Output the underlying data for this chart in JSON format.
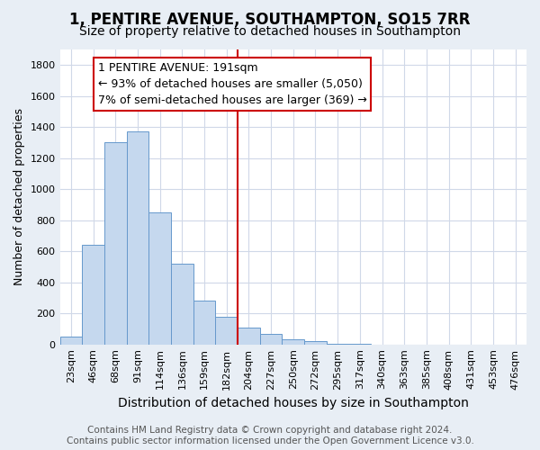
{
  "title": "1, PENTIRE AVENUE, SOUTHAMPTON, SO15 7RR",
  "subtitle": "Size of property relative to detached houses in Southampton",
  "xlabel": "Distribution of detached houses by size in Southampton",
  "ylabel": "Number of detached properties",
  "categories": [
    "23sqm",
    "46sqm",
    "68sqm",
    "91sqm",
    "114sqm",
    "136sqm",
    "159sqm",
    "182sqm",
    "204sqm",
    "227sqm",
    "250sqm",
    "272sqm",
    "295sqm",
    "317sqm",
    "340sqm",
    "363sqm",
    "385sqm",
    "408sqm",
    "431sqm",
    "453sqm",
    "476sqm"
  ],
  "values": [
    50,
    640,
    1300,
    1370,
    850,
    520,
    280,
    180,
    110,
    70,
    35,
    20,
    5,
    3,
    1,
    0,
    0,
    0,
    0,
    0,
    0
  ],
  "bar_color": "#c5d8ee",
  "bar_edge_color": "#6699cc",
  "highlight_line_color": "#cc0000",
  "annotation_text": "1 PENTIRE AVENUE: 191sqm\n← 93% of detached houses are smaller (5,050)\n7% of semi-detached houses are larger (369) →",
  "annotation_box_color": "#ffffff",
  "annotation_box_edge": "#cc0000",
  "ylim": [
    0,
    1900
  ],
  "yticks": [
    0,
    200,
    400,
    600,
    800,
    1000,
    1200,
    1400,
    1600,
    1800
  ],
  "background_color": "#e8eef5",
  "plot_bg_color": "#ffffff",
  "grid_color": "#d0d8e8",
  "footer": "Contains HM Land Registry data © Crown copyright and database right 2024.\nContains public sector information licensed under the Open Government Licence v3.0.",
  "title_fontsize": 12,
  "subtitle_fontsize": 10,
  "xlabel_fontsize": 10,
  "ylabel_fontsize": 9,
  "tick_fontsize": 8,
  "annotation_fontsize": 9,
  "footer_fontsize": 7.5
}
